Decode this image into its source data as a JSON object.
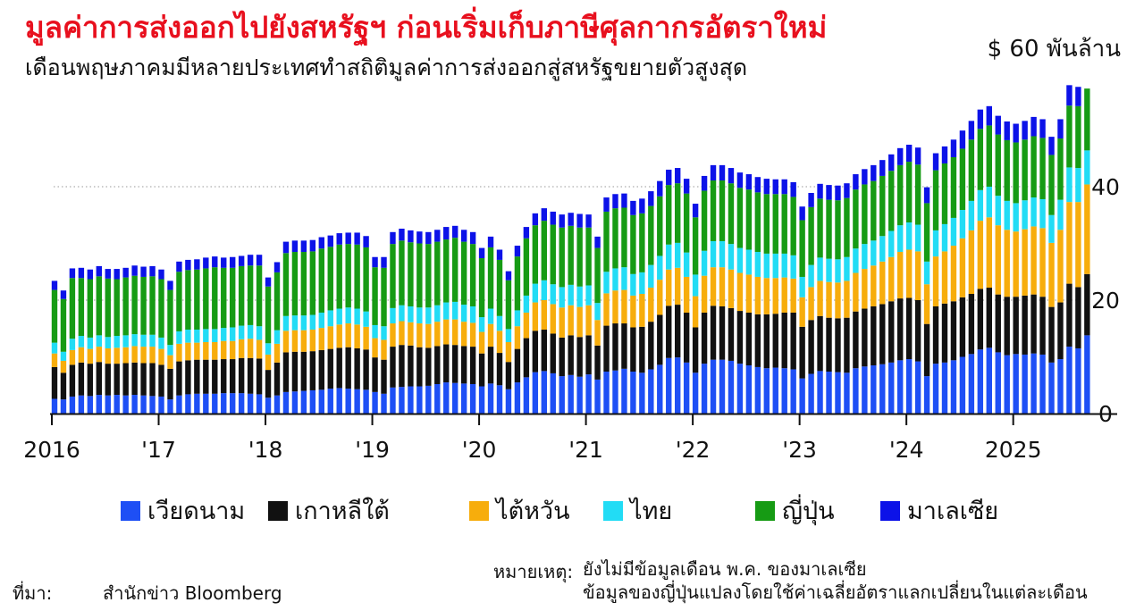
{
  "header": {
    "title": "มูลค่าการส่งออกไปยังสหรัฐฯ ก่อนเริ่มเก็บภาษีศุลกากรอัตราใหม่",
    "subtitle": "เดือนพฤษภาคมมีหลายประเทศทำสถิติมูลค่าการส่งออกสู่สหรัฐขยายตัวสูงสุด",
    "unit": "$ 60 พันล้าน"
  },
  "footer": {
    "source_label": "ที่มา:",
    "source_text": "สำนักข่าว Bloomberg",
    "note_label": "หมายเหตุ:",
    "note_line1": "ยังไม่มีข้อมูลเดือน พ.ค. ของมาเลเซีย",
    "note_line2": "ข้อมูลของญี่ปุ่นแปลงโดยใช้ค่าเฉลี่ยอัตราแลกเปลี่ยนในแต่ละเดือน"
  },
  "chart_data": {
    "type": "bar",
    "stacked": true,
    "y_ticks": [
      "0",
      "20",
      "40"
    ],
    "y_tick_values": [
      0,
      20,
      40
    ],
    "ylim": [
      0,
      60
    ],
    "x_tick_labels": [
      "2016",
      "'17",
      "'18",
      "'19",
      "'20",
      "'21",
      "'22",
      "'23",
      "'24",
      "2025"
    ],
    "x_range": [
      "2016-01",
      "2025-05"
    ],
    "grid": "dotted horizontal at 20 and 40",
    "legend_position": "bottom",
    "colors": {
      "vietnam": "#1e4ff5",
      "korea": "#111111",
      "taiwan": "#f7ad0c",
      "thailand": "#22dcf5",
      "japan": "#169b14",
      "malaysia": "#0c12e8"
    },
    "series": [
      {
        "key": "vietnam",
        "name": "เวียดนาม",
        "values": [
          2.6,
          2.5,
          3.0,
          3.2,
          3.1,
          3.3,
          3.2,
          3.3,
          3.2,
          3.3,
          3.2,
          3.1,
          3.0,
          2.5,
          3.2,
          3.4,
          3.5,
          3.5,
          3.5,
          3.6,
          3.6,
          3.6,
          3.5,
          3.4,
          2.8,
          3.2,
          3.8,
          3.9,
          4.0,
          4.1,
          4.2,
          4.4,
          4.5,
          4.4,
          4.3,
          4.2,
          3.8,
          3.5,
          4.6,
          4.7,
          4.8,
          4.8,
          4.9,
          5.2,
          5.5,
          5.4,
          5.3,
          5.2,
          4.8,
          5.3,
          5.0,
          4.3,
          5.5,
          6.4,
          7.3,
          7.5,
          7.1,
          6.6,
          6.8,
          6.5,
          6.9,
          6.0,
          7.4,
          7.6,
          7.9,
          7.4,
          7.2,
          7.8,
          8.6,
          9.8,
          9.9,
          9.0,
          7.2,
          8.8,
          9.5,
          9.5,
          9.3,
          8.8,
          8.5,
          8.2,
          8.0,
          8.1,
          8.0,
          7.8,
          6.2,
          7.0,
          7.5,
          7.4,
          7.3,
          7.2,
          8.0,
          8.3,
          8.5,
          8.7,
          9.0,
          9.4,
          9.6,
          9.2,
          6.6,
          8.8,
          9.0,
          9.4,
          10.0,
          10.5,
          11.3,
          11.6,
          10.8,
          10.3,
          10.5,
          10.4,
          10.6,
          10.4,
          9.0,
          9.6,
          11.8,
          11.5,
          13.8
        ]
      },
      {
        "key": "korea",
        "name": "เกาหลีใต้",
        "values": [
          5.6,
          4.7,
          5.6,
          5.8,
          5.7,
          5.8,
          5.6,
          5.5,
          5.7,
          5.7,
          5.7,
          5.8,
          5.6,
          5.4,
          6.0,
          6.0,
          6.0,
          6.0,
          6.0,
          6.0,
          6.0,
          6.2,
          6.3,
          6.3,
          4.9,
          5.8,
          7.0,
          7.0,
          6.9,
          6.9,
          7.0,
          7.0,
          7.1,
          7.3,
          7.2,
          7.1,
          6.1,
          6.0,
          7.2,
          7.4,
          7.2,
          6.9,
          6.7,
          6.7,
          6.7,
          6.7,
          6.6,
          6.6,
          5.8,
          6.5,
          5.7,
          4.8,
          5.9,
          6.9,
          7.3,
          7.3,
          7.0,
          6.8,
          7.0,
          7.0,
          6.9,
          6.0,
          8.1,
          8.3,
          8.0,
          7.8,
          8.1,
          8.4,
          8.8,
          9.2,
          9.3,
          8.8,
          8.0,
          9.0,
          9.5,
          9.4,
          9.3,
          9.3,
          9.3,
          9.3,
          9.5,
          9.5,
          9.8,
          10.0,
          9.1,
          9.5,
          9.7,
          9.5,
          9.5,
          9.7,
          10.0,
          10.2,
          10.4,
          10.6,
          10.8,
          10.9,
          10.8,
          10.8,
          9.2,
          10.1,
          10.4,
          10.4,
          10.5,
          10.6,
          10.7,
          10.6,
          10.2,
          10.3,
          10.1,
          10.4,
          10.4,
          10.2,
          9.8,
          10.0,
          11.1,
          10.8,
          10.8
        ]
      },
      {
        "key": "taiwan",
        "name": "ไต้หวัน",
        "values": [
          2.4,
          2.1,
          2.6,
          2.7,
          2.6,
          2.7,
          2.7,
          2.8,
          2.8,
          2.9,
          2.9,
          2.9,
          2.8,
          2.4,
          3.1,
          3.1,
          3.0,
          3.1,
          3.1,
          3.2,
          3.2,
          3.3,
          3.4,
          3.3,
          2.7,
          3.3,
          3.8,
          3.8,
          3.8,
          3.8,
          3.9,
          4.0,
          4.1,
          4.2,
          4.2,
          4.0,
          3.4,
          3.5,
          4.1,
          4.2,
          4.1,
          4.2,
          4.2,
          4.3,
          4.4,
          4.5,
          4.3,
          4.2,
          3.8,
          4.0,
          3.9,
          3.5,
          4.0,
          4.5,
          5.0,
          5.2,
          5.2,
          5.3,
          5.3,
          5.3,
          5.3,
          4.5,
          5.7,
          5.8,
          5.9,
          5.6,
          5.8,
          6.0,
          6.2,
          6.4,
          6.5,
          6.3,
          5.5,
          6.5,
          6.8,
          6.9,
          6.8,
          6.7,
          6.7,
          6.6,
          6.4,
          6.3,
          6.2,
          6.0,
          5.2,
          5.8,
          6.2,
          6.3,
          6.3,
          6.5,
          6.8,
          7.0,
          7.2,
          7.5,
          7.8,
          8.2,
          8.5,
          8.6,
          7.0,
          8.8,
          9.2,
          9.8,
          10.4,
          11.2,
          12.0,
          12.4,
          12.2,
          11.8,
          11.5,
          11.7,
          12.0,
          12.1,
          11.3,
          12.8,
          14.4,
          15.0,
          15.8
        ]
      },
      {
        "key": "thailand",
        "name": "ไทย",
        "values": [
          1.9,
          1.6,
          2.0,
          2.0,
          2.0,
          2.0,
          2.0,
          2.1,
          2.1,
          2.1,
          2.1,
          2.1,
          2.0,
          1.8,
          2.2,
          2.3,
          2.3,
          2.3,
          2.3,
          2.3,
          2.4,
          2.4,
          2.4,
          2.4,
          2.0,
          2.4,
          2.6,
          2.6,
          2.6,
          2.6,
          2.7,
          2.8,
          2.8,
          2.8,
          2.8,
          2.7,
          2.3,
          2.4,
          2.7,
          2.8,
          2.8,
          2.8,
          2.9,
          2.9,
          3.0,
          3.1,
          3.0,
          2.9,
          2.6,
          2.7,
          2.6,
          2.3,
          2.8,
          3.0,
          3.3,
          3.5,
          3.5,
          3.6,
          3.6,
          3.6,
          3.5,
          3.0,
          3.8,
          3.9,
          4.0,
          3.8,
          3.8,
          4.0,
          4.2,
          4.4,
          4.4,
          4.3,
          3.8,
          4.4,
          4.6,
          4.6,
          4.5,
          4.4,
          4.4,
          4.4,
          4.3,
          4.3,
          4.2,
          4.1,
          3.6,
          3.9,
          4.1,
          4.1,
          4.1,
          4.2,
          4.3,
          4.4,
          4.4,
          4.5,
          4.6,
          4.7,
          4.8,
          4.7,
          4.0,
          4.6,
          4.8,
          4.9,
          5.0,
          5.2,
          5.4,
          5.4,
          5.2,
          5.1,
          5.0,
          5.1,
          5.1,
          5.1,
          4.9,
          5.3,
          6.1,
          6.0,
          6.0
        ]
      },
      {
        "key": "japan",
        "name": "ญี่ปุ่น",
        "values": [
          9.3,
          9.3,
          10.7,
          10.2,
          10.3,
          10.4,
          10.3,
          10.0,
          10.2,
          10.3,
          10.2,
          10.3,
          10.3,
          9.7,
          10.5,
          10.5,
          10.6,
          10.7,
          10.9,
          10.6,
          10.5,
          10.5,
          10.5,
          10.7,
          10.0,
          10.2,
          11.1,
          11.2,
          11.2,
          11.2,
          11.3,
          11.2,
          11.3,
          11.2,
          11.3,
          11.3,
          10.2,
          10.3,
          11.3,
          11.4,
          11.3,
          11.3,
          11.2,
          11.2,
          11.1,
          11.3,
          11.1,
          11.0,
          10.4,
          10.8,
          9.9,
          8.6,
          9.5,
          10.1,
          10.3,
          10.5,
          10.5,
          10.5,
          10.4,
          10.4,
          10.2,
          9.7,
          10.6,
          10.6,
          10.5,
          10.4,
          10.4,
          10.4,
          10.5,
          10.5,
          10.5,
          10.4,
          10.1,
          10.6,
          10.7,
          10.7,
          10.7,
          10.6,
          10.6,
          10.5,
          10.5,
          10.5,
          10.5,
          10.3,
          10.0,
          10.2,
          10.4,
          10.4,
          10.4,
          10.4,
          10.4,
          10.5,
          10.5,
          10.6,
          10.6,
          10.6,
          10.7,
          10.6,
          10.3,
          10.6,
          10.7,
          10.7,
          10.8,
          10.8,
          10.8,
          10.8,
          10.8,
          10.7,
          10.7,
          10.7,
          10.8,
          10.8,
          10.6,
          10.8,
          10.9,
          10.9,
          10.9
        ]
      },
      {
        "key": "malaysia",
        "name": "มาเลเซีย",
        "values": [
          1.6,
          1.5,
          1.7,
          1.8,
          1.7,
          1.8,
          1.7,
          1.8,
          1.7,
          1.8,
          1.8,
          1.8,
          1.7,
          1.6,
          1.8,
          1.8,
          1.8,
          1.9,
          1.9,
          1.8,
          1.9,
          1.8,
          1.9,
          1.9,
          1.6,
          1.8,
          2.0,
          2.0,
          2.0,
          2.0,
          2.0,
          2.0,
          2.0,
          2.0,
          2.1,
          2.0,
          1.8,
          1.9,
          2.1,
          2.1,
          2.1,
          2.1,
          2.1,
          2.1,
          2.2,
          2.1,
          2.1,
          2.1,
          1.8,
          1.9,
          1.8,
          1.6,
          1.9,
          2.0,
          2.1,
          2.2,
          2.3,
          2.3,
          2.3,
          2.4,
          2.3,
          2.0,
          2.5,
          2.5,
          2.5,
          2.5,
          2.6,
          2.6,
          2.7,
          2.7,
          2.7,
          2.6,
          2.4,
          2.6,
          2.7,
          2.7,
          2.7,
          2.7,
          2.7,
          2.7,
          2.7,
          2.6,
          2.6,
          2.6,
          2.4,
          2.5,
          2.6,
          2.6,
          2.6,
          2.6,
          2.7,
          2.7,
          2.8,
          2.8,
          2.9,
          3.0,
          3.0,
          3.0,
          2.8,
          3.0,
          3.0,
          3.1,
          3.2,
          3.3,
          3.4,
          3.4,
          3.3,
          3.3,
          3.3,
          3.3,
          3.4,
          3.3,
          3.2,
          3.4,
          3.6,
          3.4,
          0
        ]
      }
    ]
  }
}
